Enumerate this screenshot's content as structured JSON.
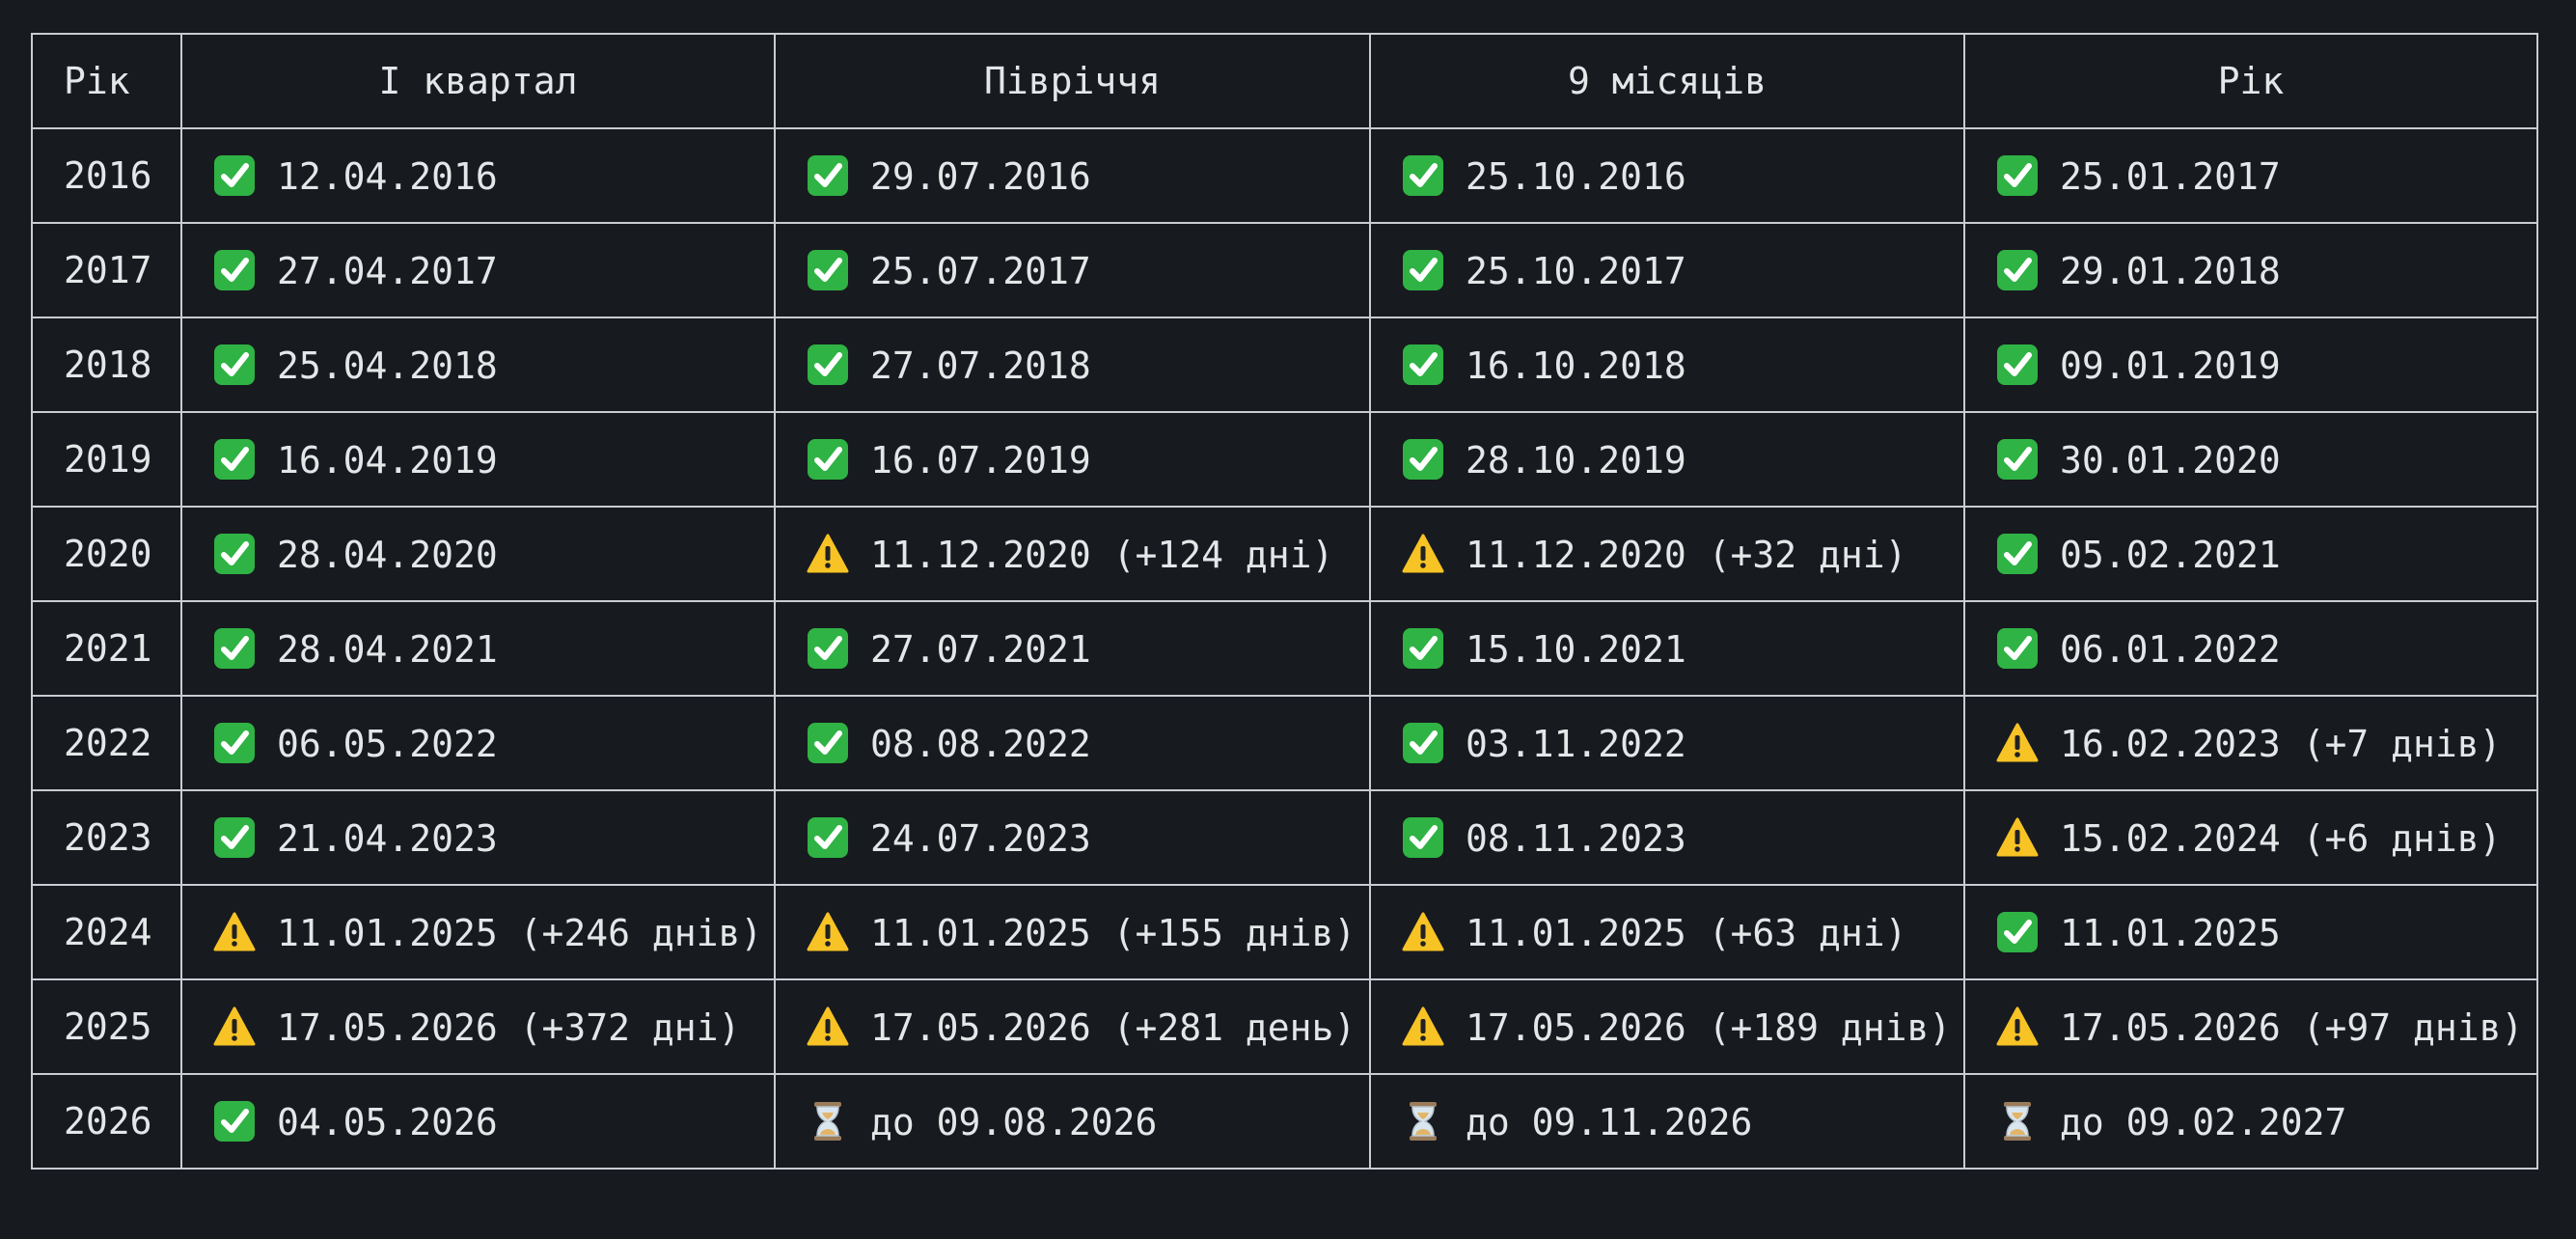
{
  "table": {
    "header": [
      "Рік",
      "I квартал",
      "Півріччя",
      "9 місяців",
      "Рік"
    ],
    "rows": [
      {
        "year": "2016",
        "cells": [
          {
            "icon": "✅",
            "text": "12.04.2016"
          },
          {
            "icon": "✅",
            "text": "29.07.2016"
          },
          {
            "icon": "✅",
            "text": "25.10.2016"
          },
          {
            "icon": "✅",
            "text": "25.01.2017"
          }
        ]
      },
      {
        "year": "2017",
        "cells": [
          {
            "icon": "✅",
            "text": "27.04.2017"
          },
          {
            "icon": "✅",
            "text": "25.07.2017"
          },
          {
            "icon": "✅",
            "text": "25.10.2017"
          },
          {
            "icon": "✅",
            "text": "29.01.2018"
          }
        ]
      },
      {
        "year": "2018",
        "cells": [
          {
            "icon": "✅",
            "text": "25.04.2018"
          },
          {
            "icon": "✅",
            "text": "27.07.2018"
          },
          {
            "icon": "✅",
            "text": "16.10.2018"
          },
          {
            "icon": "✅",
            "text": "09.01.2019"
          }
        ]
      },
      {
        "year": "2019",
        "cells": [
          {
            "icon": "✅",
            "text": "16.04.2019"
          },
          {
            "icon": "✅",
            "text": "16.07.2019"
          },
          {
            "icon": "✅",
            "text": "28.10.2019"
          },
          {
            "icon": "✅",
            "text": "30.01.2020"
          }
        ]
      },
      {
        "year": "2020",
        "cells": [
          {
            "icon": "✅",
            "text": "28.04.2020"
          },
          {
            "icon": "⚠️",
            "text": "11.12.2020 (+124 дні)"
          },
          {
            "icon": "⚠️",
            "text": "11.12.2020 (+32 дні)"
          },
          {
            "icon": "✅",
            "text": "05.02.2021"
          }
        ]
      },
      {
        "year": "2021",
        "cells": [
          {
            "icon": "✅",
            "text": "28.04.2021"
          },
          {
            "icon": "✅",
            "text": "27.07.2021"
          },
          {
            "icon": "✅",
            "text": "15.10.2021"
          },
          {
            "icon": "✅",
            "text": "06.01.2022"
          }
        ]
      },
      {
        "year": "2022",
        "cells": [
          {
            "icon": "✅",
            "text": "06.05.2022"
          },
          {
            "icon": "✅",
            "text": "08.08.2022"
          },
          {
            "icon": "✅",
            "text": "03.11.2022"
          },
          {
            "icon": "⚠️",
            "text": "16.02.2023 (+7 днів)"
          }
        ]
      },
      {
        "year": "2023",
        "cells": [
          {
            "icon": "✅",
            "text": "21.04.2023"
          },
          {
            "icon": "✅",
            "text": "24.07.2023"
          },
          {
            "icon": "✅",
            "text": "08.11.2023"
          },
          {
            "icon": "⚠️",
            "text": "15.02.2024 (+6 днів)"
          }
        ]
      },
      {
        "year": "2024",
        "cells": [
          {
            "icon": "⚠️",
            "text": "11.01.2025 (+246 днів)"
          },
          {
            "icon": "⚠️",
            "text": "11.01.2025 (+155 днів)"
          },
          {
            "icon": "⚠️",
            "text": "11.01.2025 (+63 дні)"
          },
          {
            "icon": "✅",
            "text": "11.01.2025"
          }
        ]
      },
      {
        "year": "2025",
        "cells": [
          {
            "icon": "⚠️",
            "text": "17.05.2026 (+372 дні)"
          },
          {
            "icon": "⚠️",
            "text": "17.05.2026 (+281 день)"
          },
          {
            "icon": "⚠️",
            "text": "17.05.2026 (+189 днів)"
          },
          {
            "icon": "⚠️",
            "text": "17.05.2026 (+97 днів)"
          }
        ]
      },
      {
        "year": "2026",
        "cells": [
          {
            "icon": "✅",
            "text": "04.05.2026"
          },
          {
            "icon": "⏳",
            "text": "до 09.08.2026"
          },
          {
            "icon": "⏳",
            "text": "до 09.11.2026"
          },
          {
            "icon": "⏳",
            "text": "до 09.02.2027"
          }
        ]
      }
    ]
  }
}
